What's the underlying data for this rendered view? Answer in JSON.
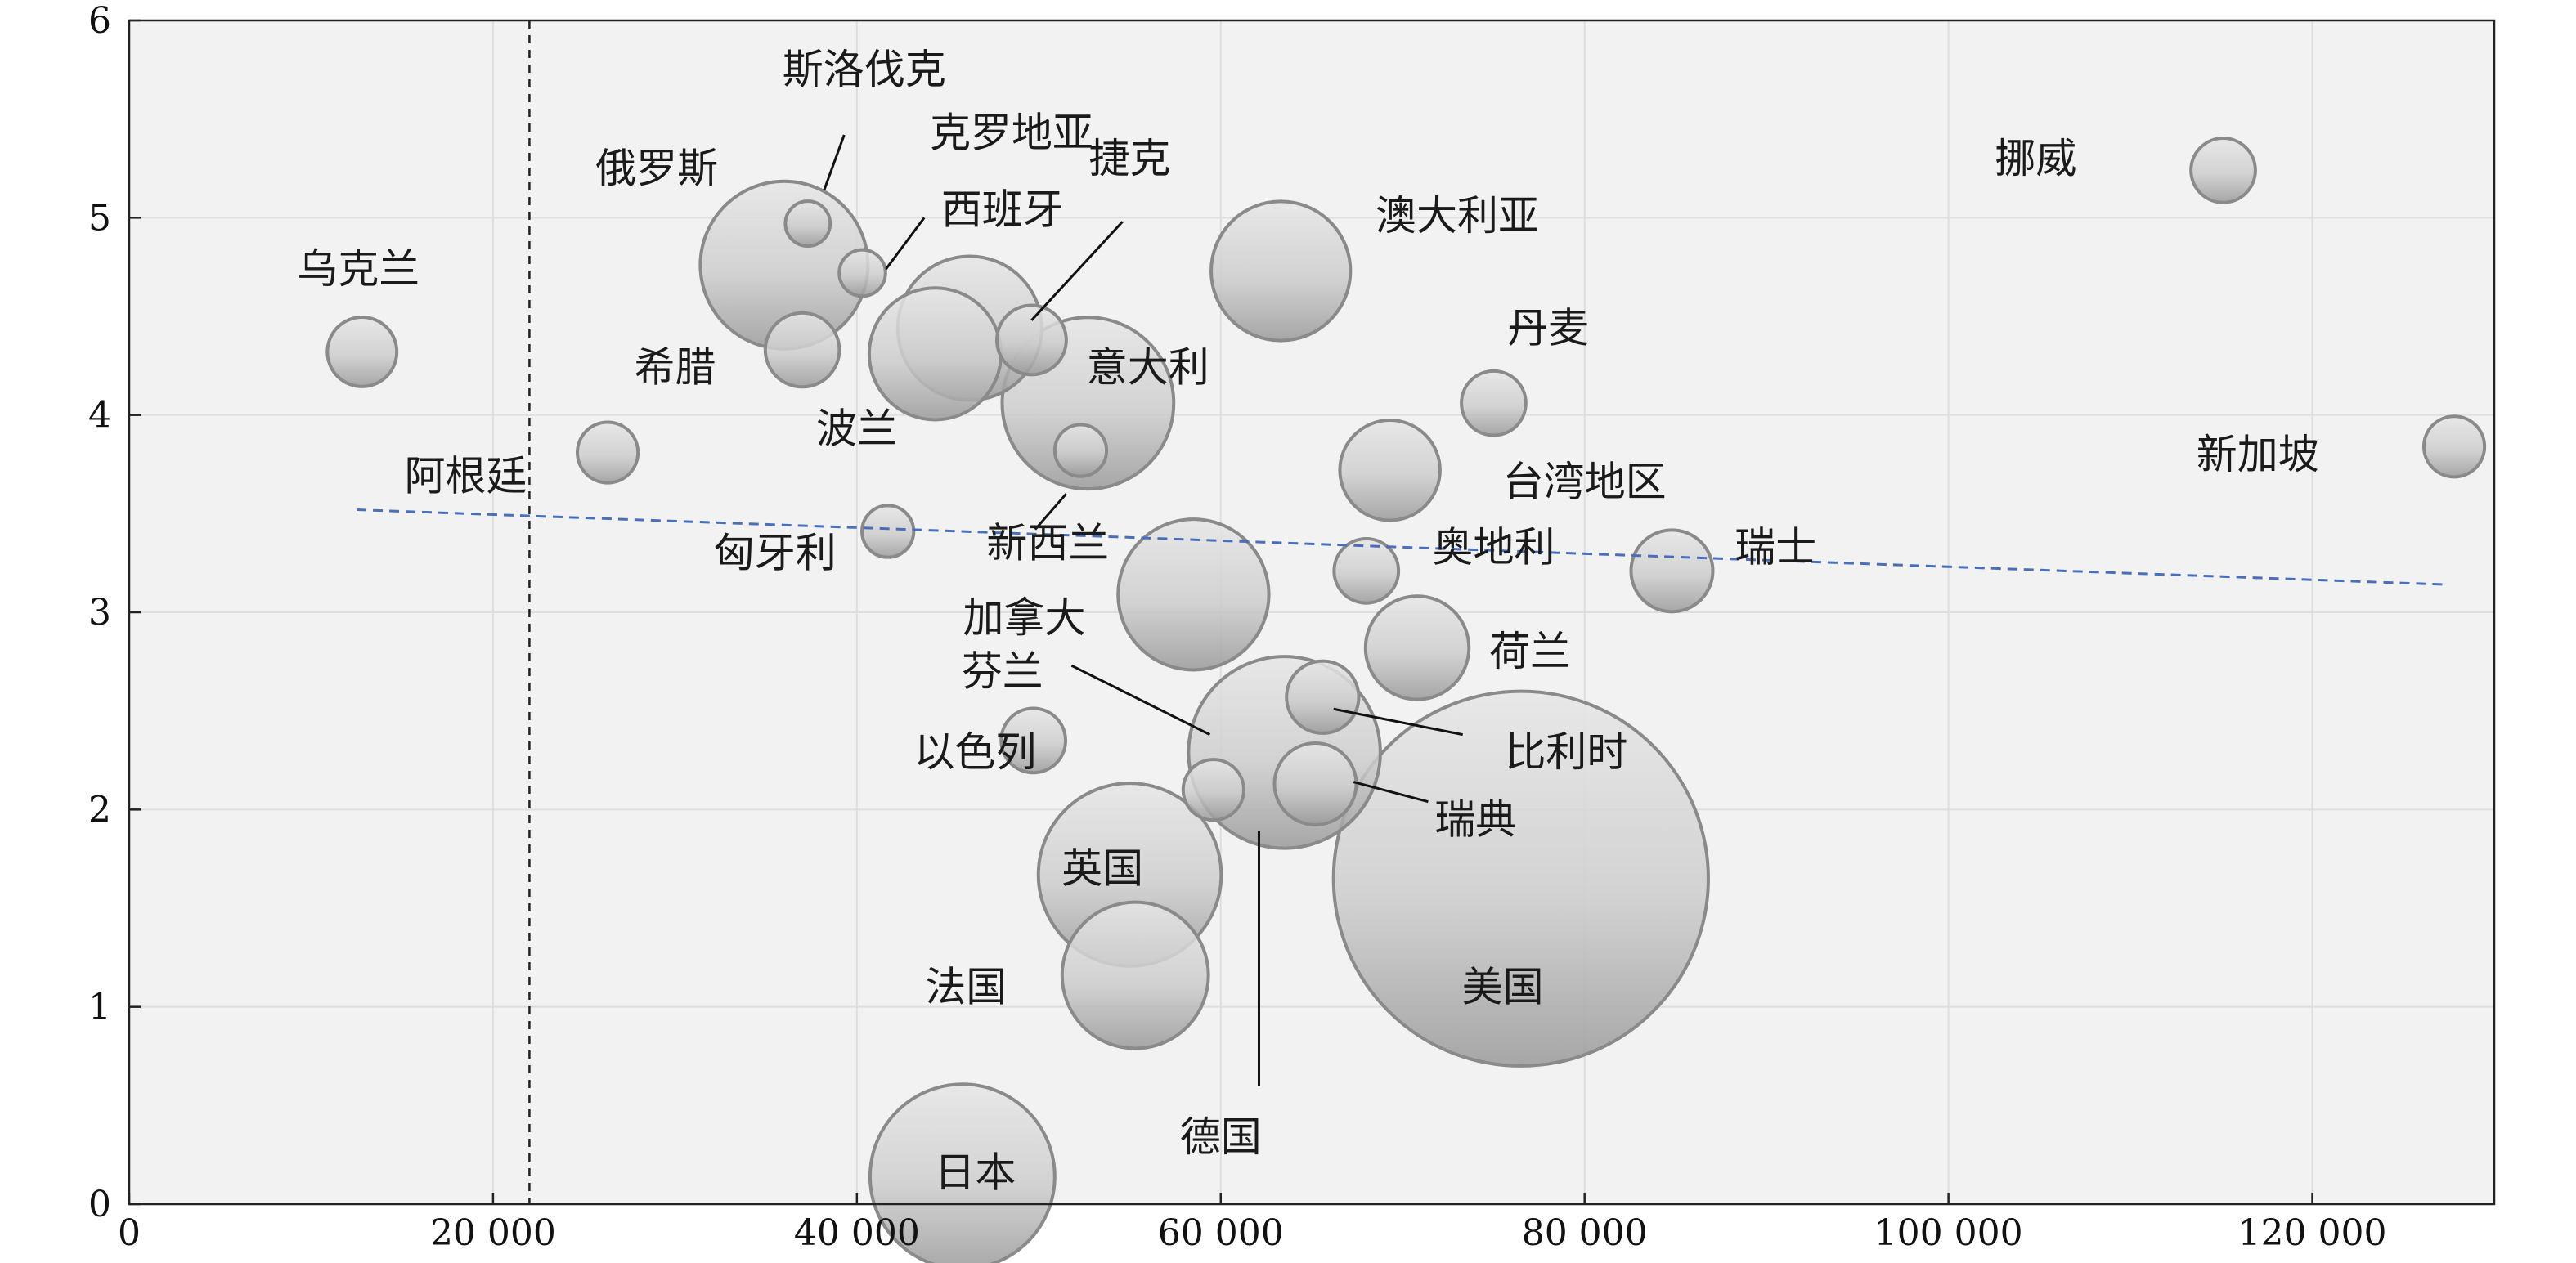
{
  "chart_data": {
    "type": "scatter",
    "title": "",
    "xlabel": "",
    "ylabel": "",
    "xlim": [
      0,
      130000
    ],
    "ylim": [
      0,
      6
    ],
    "x_ticks": [
      {
        "value": 0,
        "label": "0"
      },
      {
        "value": 20000,
        "label": "20 000"
      },
      {
        "value": 40000,
        "label": "40 000"
      },
      {
        "value": 60000,
        "label": "60 000"
      },
      {
        "value": 80000,
        "label": "80 000"
      },
      {
        "value": 100000,
        "label": "100 000"
      },
      {
        "value": 120000,
        "label": "120 000"
      }
    ],
    "y_ticks": [
      {
        "value": 0,
        "label": "0"
      },
      {
        "value": 1,
        "label": "1"
      },
      {
        "value": 2,
        "label": "2"
      },
      {
        "value": 3,
        "label": "3"
      },
      {
        "value": 4,
        "label": "4"
      },
      {
        "value": 5,
        "label": "5"
      },
      {
        "value": 6,
        "label": "6"
      }
    ],
    "grid": true,
    "vertical_reference_x": 22000,
    "trend_line": {
      "x": [
        12500,
        127500
      ],
      "y": [
        3.52,
        3.14
      ],
      "color": "#4a6fb8"
    },
    "bubble_color": "#c8c8c8",
    "bubble_edge_color": "#8a8a8a",
    "bubbles": [
      {
        "name": "乌克兰",
        "x": 12800,
        "y": 4.32,
        "size": 0.72
      },
      {
        "name": "阿根廷",
        "x": 26300,
        "y": 3.81,
        "size": 0.55
      },
      {
        "name": "俄罗斯",
        "x": 36000,
        "y": 4.76,
        "size": 4.2
      },
      {
        "name": "斯洛伐克",
        "x": 37300,
        "y": 4.97,
        "size": 0.3
      },
      {
        "name": "克罗地亚",
        "x": 40300,
        "y": 4.72,
        "size": 0.32
      },
      {
        "name": "希腊",
        "x": 37000,
        "y": 4.33,
        "size": 0.82
      },
      {
        "name": "西班牙",
        "x": 44300,
        "y": 4.31,
        "size": 2.6
      },
      {
        "name": "波兰",
        "x": 46200,
        "y": 4.44,
        "size": 3.1
      },
      {
        "name": "捷克",
        "x": 49600,
        "y": 4.38,
        "size": 0.72
      },
      {
        "name": "意大利",
        "x": 52700,
        "y": 4.06,
        "size": 4.4
      },
      {
        "name": "新西兰",
        "x": 52300,
        "y": 3.82,
        "size": 0.4
      },
      {
        "name": "匈牙利",
        "x": 41700,
        "y": 3.41,
        "size": 0.4
      },
      {
        "name": "澳大利亚",
        "x": 63300,
        "y": 4.73,
        "size": 2.9
      },
      {
        "name": "丹麦",
        "x": 75000,
        "y": 4.06,
        "size": 0.62
      },
      {
        "name": "台湾地区",
        "x": 69300,
        "y": 3.72,
        "size": 1.5
      },
      {
        "name": "奥地利",
        "x": 68000,
        "y": 3.21,
        "size": 0.62
      },
      {
        "name": "瑞士",
        "x": 84800,
        "y": 3.21,
        "size": 1.0
      },
      {
        "name": "加拿大",
        "x": 58500,
        "y": 3.09,
        "size": 3.4
      },
      {
        "name": "荷兰",
        "x": 70800,
        "y": 2.82,
        "size": 1.6
      },
      {
        "name": "以色列",
        "x": 49700,
        "y": 2.35,
        "size": 0.62
      },
      {
        "name": "比利时",
        "x": 65600,
        "y": 2.57,
        "size": 0.78
      },
      {
        "name": "德国",
        "x": 63500,
        "y": 2.29,
        "size": 5.5
      },
      {
        "name": "瑞典",
        "x": 65200,
        "y": 2.13,
        "size": 1.0
      },
      {
        "name": "芬兰",
        "x": 59600,
        "y": 2.1,
        "size": 0.55
      },
      {
        "name": "英国",
        "x": 55000,
        "y": 1.67,
        "size": 5.0
      },
      {
        "name": "法国",
        "x": 55300,
        "y": 1.16,
        "size": 3.2
      },
      {
        "name": "日本",
        "x": 45800,
        "y": 0.14,
        "size": 5.1
      },
      {
        "name": "美国",
        "x": 76500,
        "y": 1.65,
        "size": 21.0
      },
      {
        "name": "挪威",
        "x": 115100,
        "y": 5.24,
        "size": 0.62
      },
      {
        "name": "新加坡",
        "x": 127800,
        "y": 3.84,
        "size": 0.55
      }
    ],
    "labels": [
      {
        "text": "斯洛伐克",
        "x": 40400,
        "y": 5.68,
        "anchor": "middle"
      },
      {
        "text": "克罗地亚",
        "x": 48500,
        "y": 5.36,
        "anchor": "middle"
      },
      {
        "text": "俄罗斯",
        "x": 29000,
        "y": 5.18,
        "anchor": "middle"
      },
      {
        "text": "捷克",
        "x": 55000,
        "y": 5.23,
        "anchor": "middle"
      },
      {
        "text": "西班牙",
        "x": 48000,
        "y": 4.97,
        "anchor": "middle"
      },
      {
        "text": "乌克兰",
        "x": 12600,
        "y": 4.67,
        "anchor": "middle"
      },
      {
        "text": "希腊",
        "x": 30000,
        "y": 4.17,
        "anchor": "middle"
      },
      {
        "text": "意大利",
        "x": 56000,
        "y": 4.17,
        "anchor": "middle"
      },
      {
        "text": "澳大利亚",
        "x": 73000,
        "y": 4.94,
        "anchor": "middle"
      },
      {
        "text": "丹麦",
        "x": 78000,
        "y": 4.37,
        "anchor": "middle"
      },
      {
        "text": "波兰",
        "x": 40000,
        "y": 3.86,
        "anchor": "middle"
      },
      {
        "text": "阿根廷",
        "x": 18500,
        "y": 3.62,
        "anchor": "middle"
      },
      {
        "text": "台湾地区",
        "x": 80000,
        "y": 3.59,
        "anchor": "middle"
      },
      {
        "text": "新西兰",
        "x": 50500,
        "y": 3.28,
        "anchor": "middle"
      },
      {
        "text": "匈牙利",
        "x": 35500,
        "y": 3.23,
        "anchor": "middle"
      },
      {
        "text": "奥地利",
        "x": 75000,
        "y": 3.26,
        "anchor": "middle"
      },
      {
        "text": "瑞士",
        "x": 90500,
        "y": 3.26,
        "anchor": "middle"
      },
      {
        "text": "加拿大",
        "x": 49200,
        "y": 2.9,
        "anchor": "middle"
      },
      {
        "text": "荷兰",
        "x": 77000,
        "y": 2.73,
        "anchor": "middle"
      },
      {
        "text": "芬兰",
        "x": 48000,
        "y": 2.63,
        "anchor": "middle"
      },
      {
        "text": "以色列",
        "x": 46500,
        "y": 2.22,
        "anchor": "middle"
      },
      {
        "text": "比利时",
        "x": 79000,
        "y": 2.22,
        "anchor": "middle"
      },
      {
        "text": "瑞典",
        "x": 74000,
        "y": 1.88,
        "anchor": "middle"
      },
      {
        "text": "英国",
        "x": 53500,
        "y": 1.63,
        "anchor": "middle"
      },
      {
        "text": "法国",
        "x": 46000,
        "y": 1.03,
        "anchor": "middle"
      },
      {
        "text": "德国",
        "x": 60000,
        "y": 0.27,
        "anchor": "middle"
      },
      {
        "text": "日本",
        "x": 46500,
        "y": 0.09,
        "anchor": "middle"
      },
      {
        "text": "美国",
        "x": 75500,
        "y": 1.03,
        "anchor": "middle"
      },
      {
        "text": "挪威",
        "x": 104800,
        "y": 5.23,
        "anchor": "middle"
      },
      {
        "text": "新加坡",
        "x": 117000,
        "y": 3.73,
        "anchor": "middle"
      }
    ],
    "leader_lines": [
      {
        "to": "斯洛伐克",
        "x1": 39300,
        "y1": 5.42,
        "x2": 38200,
        "y2": 5.14
      },
      {
        "to": "克罗地亚",
        "x1": 43700,
        "y1": 5.0,
        "x2": 41600,
        "y2": 4.74
      },
      {
        "to": "捷克",
        "x1": 54600,
        "y1": 4.98,
        "x2": 49600,
        "y2": 4.48
      },
      {
        "to": "新西兰",
        "x1": 51500,
        "y1": 3.6,
        "x2": 49800,
        "y2": 3.42
      },
      {
        "to": "加拿大",
        "x1": 51800,
        "y1": 2.73,
        "x2": 59400,
        "y2": 2.38
      },
      {
        "to": "比利时",
        "x1": 73300,
        "y1": 2.38,
        "x2": 66200,
        "y2": 2.51
      },
      {
        "to": "瑞典",
        "x1": 71400,
        "y1": 2.04,
        "x2": 67300,
        "y2": 2.14
      },
      {
        "to": "德国",
        "x1": 62100,
        "y1": 0.6,
        "x2": 62100,
        "y2": 1.89
      }
    ]
  }
}
